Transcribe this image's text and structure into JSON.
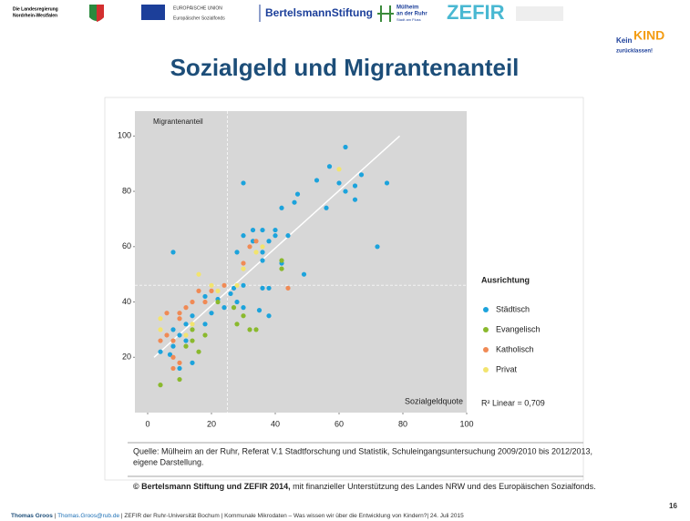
{
  "header": {
    "nrw": [
      "Die Landesregierung",
      "Nordrhein-Westfalen"
    ],
    "eu": [
      "EUROPÄISCHE UNION",
      "Europäischer Sozialfonds"
    ],
    "bertelsmann": "BertelsmannStiftung",
    "muelheim": [
      "Mülheim",
      "an der Ruhr",
      "Stadt am Fluss"
    ],
    "zefir": "ZEFIR",
    "kein_kind": [
      "Kein",
      "KIND",
      "zurücklassen!"
    ]
  },
  "title": "Sozialgeld und Migrantenanteil",
  "chart_data": {
    "type": "scatter",
    "ylabel": "Migrantenanteil",
    "xlabel": "Sozialgeldquote",
    "legend_title": "Ausrichtung",
    "annotation": "R² Linear = 0,709",
    "xlim": [
      -4,
      100
    ],
    "ylim": [
      0,
      109
    ],
    "xticks": [
      0,
      20,
      40,
      60,
      80,
      100
    ],
    "yticks": [
      20,
      40,
      60,
      80,
      100
    ],
    "reference_lines": {
      "x": 25,
      "y": 46
    },
    "trendline": {
      "x": [
        2,
        79
      ],
      "y": [
        20,
        100
      ]
    },
    "series": [
      {
        "name": "Städtisch",
        "color": "#1ca3dc",
        "x": [
          62,
          57,
          53,
          67,
          75,
          65,
          60,
          62,
          56,
          65,
          30,
          47,
          46,
          42,
          33,
          36,
          40,
          38,
          40,
          33,
          44,
          36,
          30,
          28,
          36,
          42,
          72,
          8,
          49,
          30,
          27,
          36,
          38,
          26,
          22,
          18,
          24,
          30,
          20,
          28,
          35,
          18,
          12,
          14,
          38,
          8,
          10,
          12,
          8,
          4,
          14,
          10,
          7
        ],
        "y": [
          96,
          89,
          84,
          86,
          83,
          82,
          83,
          80,
          74,
          77,
          83,
          79,
          76,
          74,
          66,
          66,
          66,
          62,
          64,
          62,
          64,
          58,
          64,
          58,
          55,
          54,
          60,
          58,
          50,
          46,
          45,
          45,
          45,
          43,
          41,
          42,
          38,
          38,
          36,
          40,
          37,
          32,
          32,
          35,
          35,
          30,
          28,
          26,
          24,
          22,
          18,
          16,
          21
        ]
      },
      {
        "name": "Evangelisch",
        "color": "#8ab92d",
        "x": [
          4,
          10,
          14,
          16,
          12,
          18,
          14,
          22,
          27,
          32,
          34,
          28,
          42,
          42,
          30
        ],
        "y": [
          10,
          12,
          26,
          22,
          24,
          28,
          30,
          40,
          38,
          30,
          30,
          32,
          52,
          55,
          35
        ]
      },
      {
        "name": "Katholisch",
        "color": "#f08a55",
        "x": [
          6,
          8,
          10,
          12,
          14,
          16,
          10,
          6,
          4,
          8,
          10,
          18,
          20,
          24,
          32,
          34,
          44,
          30,
          8
        ],
        "y": [
          28,
          26,
          34,
          38,
          40,
          44,
          36,
          36,
          26,
          20,
          18,
          40,
          44,
          46,
          60,
          62,
          45,
          54,
          16
        ]
      },
      {
        "name": "Privat",
        "color": "#f2e46e",
        "x": [
          16,
          20,
          22,
          14,
          12,
          4,
          4,
          34,
          36,
          60,
          28,
          30
        ],
        "y": [
          50,
          46,
          44,
          32,
          28,
          34,
          30,
          58,
          60,
          88,
          46,
          52
        ]
      }
    ]
  },
  "source": [
    "Quelle: Mülheim an der Ruhr, Referat V.1 Stadtforschung und Statistik, Schuleingangsuntersuchung 2009/2010 bis 2012/2013,",
    "eigene Darstellung."
  ],
  "copyright": {
    "bold": "© Bertelsmann Stiftung und ZEFIR 2014,",
    "rest": " mit finanzieller Unterstützung des Landes NRW und des Europäischen Sozialfonds."
  },
  "footer": {
    "author": "Thomas Groos",
    "sep1": " | ",
    "email": "Thomas.Groos@rub.de",
    "rest": "  | ZEFIR der Ruhr-Universität Bochum | Kommunale Mikrodaten – Was wissen wir über die Entwicklung von Kindern?| 24. Juli 2015",
    "page": "16"
  }
}
